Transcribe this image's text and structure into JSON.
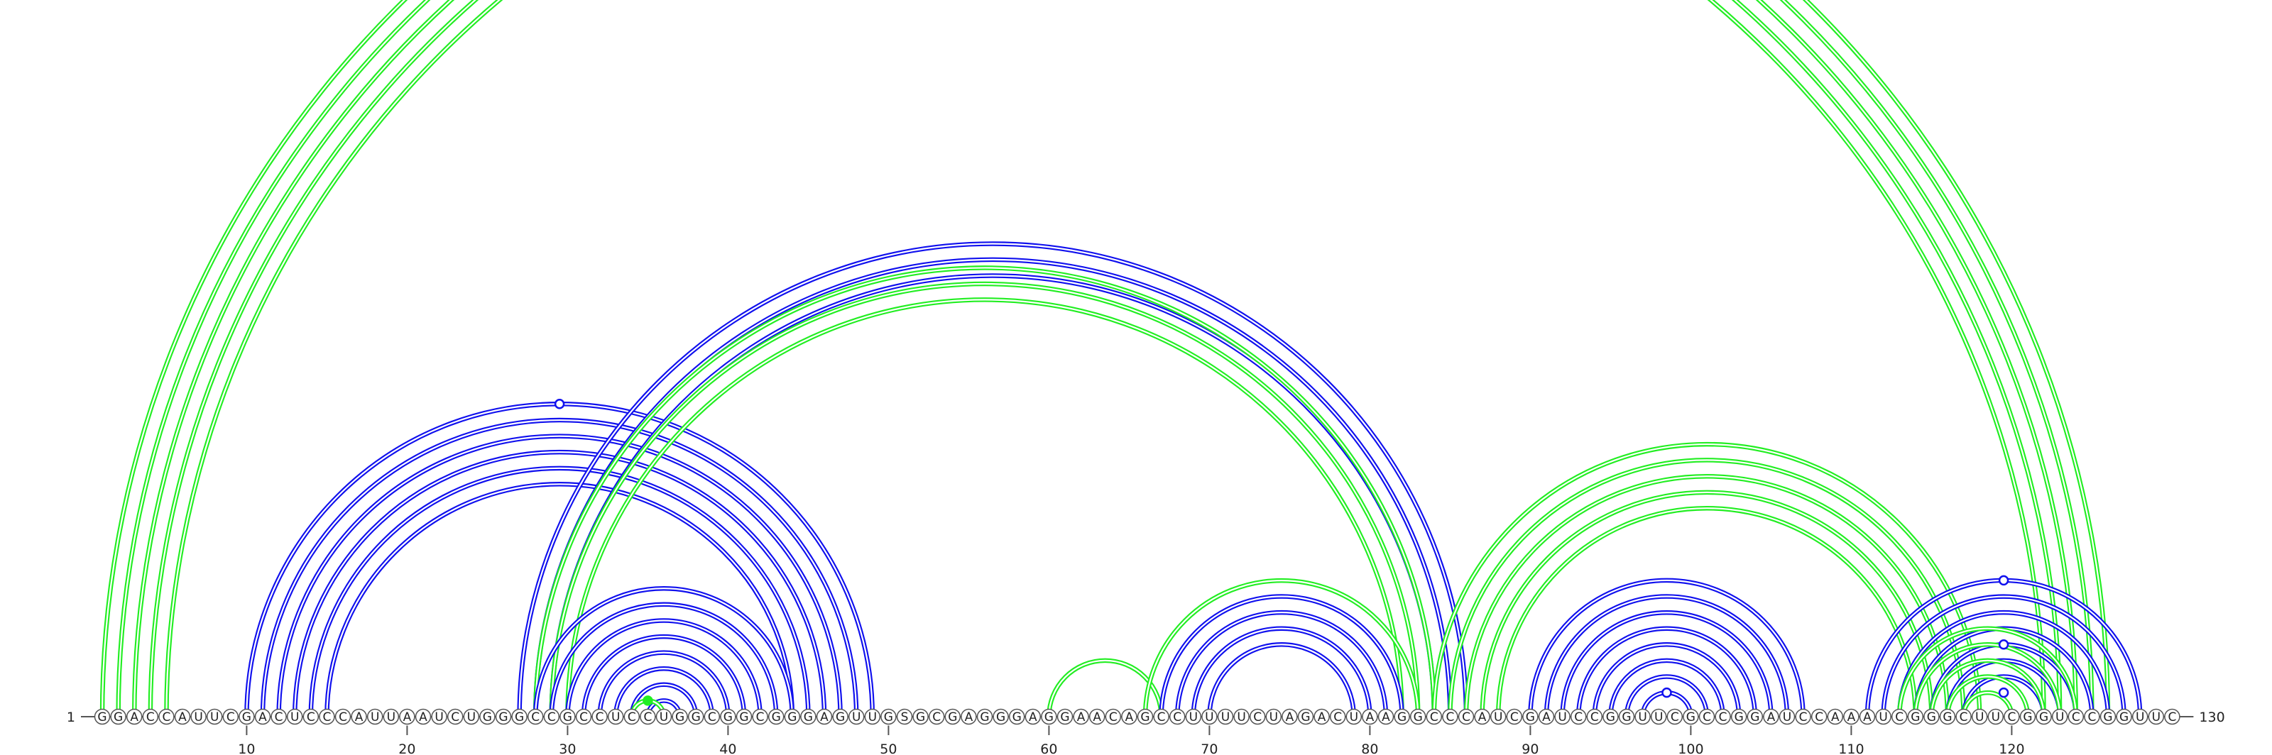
{
  "sequence": "GGACCAUUCGACUCCCAUUAAUCUGGGCCGCCUCCUGGCGGCGGGAGUUGSGCGAGGGAGGAACAGCCUUUUCUAGACUAAGGCCCAUCGAUCCGGUUCGCCGGAUCCAAAUCGGGCUUCGGUCCGGUUC",
  "start_label": "1",
  "end_label": "130",
  "ticks": [
    10,
    20,
    30,
    40,
    50,
    60,
    70,
    80,
    90,
    100,
    110,
    120
  ],
  "colors": {
    "blue": "#1010ee",
    "green": "#22ee22",
    "outline": "#555555"
  },
  "helices": [
    {
      "color": "blue",
      "i": 10,
      "j": 49,
      "n": 6
    },
    {
      "color": "blue",
      "i": 27,
      "j": 86,
      "n": 3
    },
    {
      "color": "green",
      "i": 28,
      "j": 84,
      "n": 3
    },
    {
      "color": "blue",
      "i": 28,
      "j": 44,
      "n": 8
    },
    {
      "color": "green",
      "i": 34,
      "j": 36,
      "n": 1
    },
    {
      "color": "green",
      "i": 1,
      "j": 126,
      "n": 5
    },
    {
      "color": "green",
      "i": 60,
      "j": 67,
      "n": 1
    },
    {
      "color": "green",
      "i": 66,
      "j": 83,
      "n": 1
    },
    {
      "color": "blue",
      "i": 67,
      "j": 82,
      "n": 4
    },
    {
      "color": "green",
      "i": 84,
      "j": 118,
      "n": 5
    },
    {
      "color": "blue",
      "i": 90,
      "j": 107,
      "n": 8
    },
    {
      "color": "blue",
      "i": 111,
      "j": 128,
      "n": 7
    },
    {
      "color": "green",
      "i": 113,
      "j": 124,
      "n": 5
    }
  ],
  "markers": [
    {
      "color": "blue",
      "i": 10,
      "j": 49,
      "filled": false
    },
    {
      "color": "green",
      "i": 1,
      "j": 126,
      "filled": false
    },
    {
      "color": "green",
      "i": 34,
      "j": 36,
      "filled": true
    },
    {
      "color": "blue",
      "i": 97,
      "j": 100,
      "filled": false
    },
    {
      "color": "blue",
      "i": 111,
      "j": 128,
      "filled": false
    },
    {
      "color": "blue",
      "i": 115,
      "j": 124,
      "filled": false
    },
    {
      "color": "blue",
      "i": 118,
      "j": 121,
      "filled": false
    }
  ]
}
